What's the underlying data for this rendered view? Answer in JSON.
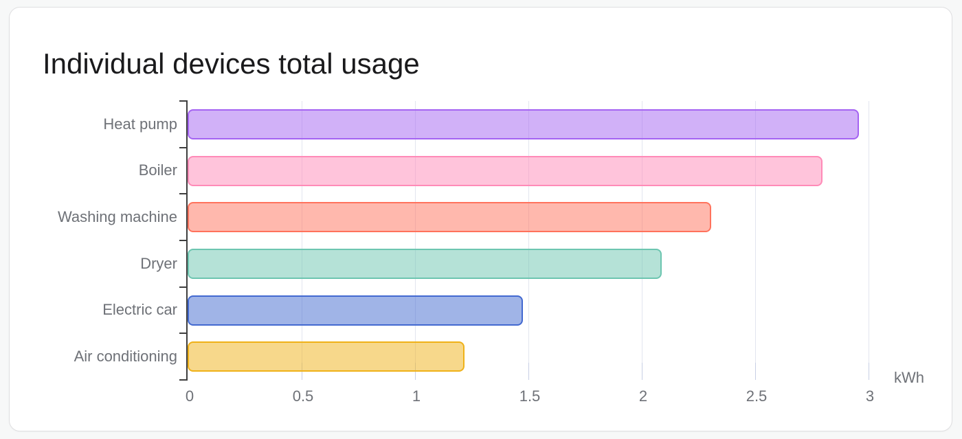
{
  "page": {
    "background": "#f7f8f8"
  },
  "card": {
    "title": "Individual devices total usage",
    "background": "#ffffff",
    "border_color": "#dfdfe1"
  },
  "chart_data": {
    "type": "bar",
    "orientation": "horizontal",
    "title": "Individual devices total usage",
    "unit": "kWh",
    "categories": [
      "Heat pump",
      "Boiler",
      "Washing machine",
      "Dryer",
      "Electric car",
      "Air conditioning"
    ],
    "values": [
      2.96,
      2.8,
      2.31,
      2.09,
      1.48,
      1.22
    ],
    "series": [
      {
        "name": "Heat pump",
        "value": 2.96,
        "border_color": "#a463f2",
        "fill_color": "rgba(164,99,242,0.5)"
      },
      {
        "name": "Boiler",
        "value": 2.8,
        "border_color": "#ff8ab7",
        "fill_color": "rgba(255,138,183,0.5)"
      },
      {
        "name": "Washing machine",
        "value": 2.31,
        "border_color": "#ff725c",
        "fill_color": "rgba(255,114,92,0.5)"
      },
      {
        "name": "Dryer",
        "value": 2.09,
        "border_color": "#6cc5b0",
        "fill_color": "rgba(108,197,176,0.5)"
      },
      {
        "name": "Electric car",
        "value": 1.48,
        "border_color": "#4269d0",
        "fill_color": "rgba(66,105,208,0.5)"
      },
      {
        "name": "Air conditioning",
        "value": 1.22,
        "border_color": "#efb118",
        "fill_color": "rgba(239,177,24,0.5)"
      }
    ],
    "x_ticks": [
      {
        "value": 0,
        "label": "0"
      },
      {
        "value": 0.5,
        "label": "0.5"
      },
      {
        "value": 1,
        "label": "1"
      },
      {
        "value": 1.5,
        "label": "1.5"
      },
      {
        "value": 2,
        "label": "2"
      },
      {
        "value": 2.5,
        "label": "2.5"
      },
      {
        "value": 3,
        "label": "3"
      }
    ],
    "xlim": [
      0,
      3.35
    ],
    "grid": true,
    "legend": "none",
    "axis_colors": {
      "axis_line": "#3e3e3e",
      "gridline": "#e2e5ef",
      "tick_mark": "#c7cfe4",
      "tick_label": "#6e7177"
    }
  }
}
